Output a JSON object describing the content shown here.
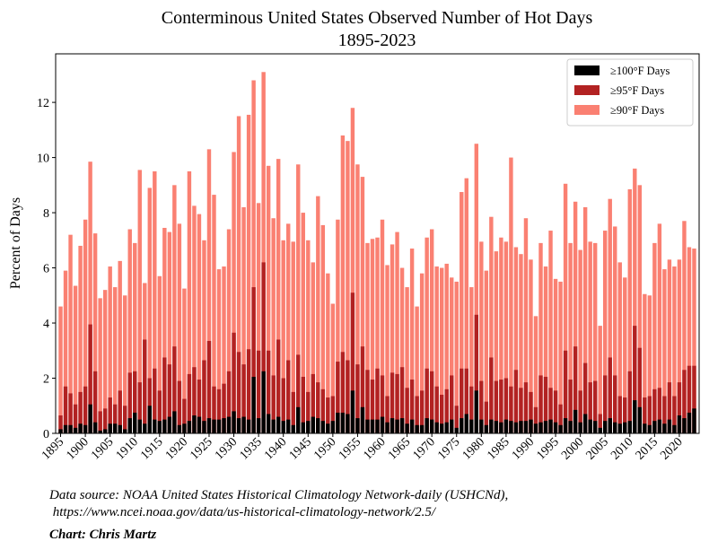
{
  "chart_data": {
    "type": "bar",
    "title": "Conterminous United States Observed Number of Hot Days",
    "subtitle": "1895-2023",
    "y_label": "Percent of Days",
    "source": [
      "Data source: NOAA United States Historical Climatology Network-daily (USHCNd),",
      " https://www.ncei.noaa.gov/data/us-historical-climatology-network/2.5/"
    ],
    "credit": "Chart: Chris Martz",
    "x": [
      1895,
      1896,
      1897,
      1898,
      1899,
      1900,
      1901,
      1902,
      1903,
      1904,
      1905,
      1906,
      1907,
      1908,
      1909,
      1910,
      1911,
      1912,
      1913,
      1914,
      1915,
      1916,
      1917,
      1918,
      1919,
      1920,
      1921,
      1922,
      1923,
      1924,
      1925,
      1926,
      1927,
      1928,
      1929,
      1930,
      1931,
      1932,
      1933,
      1934,
      1935,
      1936,
      1937,
      1938,
      1939,
      1940,
      1941,
      1942,
      1943,
      1944,
      1945,
      1946,
      1947,
      1948,
      1949,
      1950,
      1951,
      1952,
      1953,
      1954,
      1955,
      1956,
      1957,
      1958,
      1959,
      1960,
      1961,
      1962,
      1963,
      1964,
      1965,
      1966,
      1967,
      1968,
      1969,
      1970,
      1971,
      1972,
      1973,
      1974,
      1975,
      1976,
      1977,
      1978,
      1979,
      1980,
      1981,
      1982,
      1983,
      1984,
      1985,
      1986,
      1987,
      1988,
      1989,
      1990,
      1991,
      1992,
      1993,
      1994,
      1995,
      1996,
      1997,
      1998,
      1999,
      2000,
      2001,
      2002,
      2003,
      2004,
      2005,
      2006,
      2007,
      2008,
      2009,
      2010,
      2011,
      2012,
      2013,
      2014,
      2015,
      2016,
      2017,
      2018,
      2019,
      2020,
      2021,
      2022,
      2023
    ],
    "series": [
      {
        "name": "≥100°F Days",
        "color": "#000000",
        "values": [
          0.15,
          0.3,
          0.3,
          0.2,
          0.35,
          0.3,
          1.05,
          0.4,
          0.1,
          0.15,
          0.35,
          0.35,
          0.3,
          0.15,
          0.55,
          0.75,
          0.5,
          0.35,
          1.0,
          0.5,
          0.45,
          0.5,
          0.6,
          0.8,
          0.3,
          0.35,
          0.45,
          0.65,
          0.6,
          0.45,
          0.55,
          0.5,
          0.5,
          0.55,
          0.6,
          0.8,
          0.55,
          0.6,
          0.5,
          2.05,
          0.55,
          2.25,
          0.7,
          0.5,
          0.6,
          0.45,
          0.5,
          0.3,
          0.95,
          0.4,
          0.45,
          0.6,
          0.55,
          0.45,
          0.35,
          0.45,
          0.75,
          0.75,
          0.7,
          1.55,
          0.55,
          0.95,
          0.5,
          0.5,
          0.5,
          0.6,
          0.4,
          0.55,
          0.5,
          0.55,
          0.35,
          0.5,
          0.3,
          0.3,
          0.55,
          0.5,
          0.4,
          0.35,
          0.4,
          0.5,
          0.2,
          0.55,
          0.7,
          0.5,
          1.55,
          0.5,
          0.3,
          0.5,
          0.45,
          0.4,
          0.5,
          0.45,
          0.4,
          0.45,
          0.45,
          0.5,
          0.35,
          0.4,
          0.45,
          0.5,
          0.4,
          0.3,
          0.55,
          0.45,
          0.85,
          0.4,
          0.7,
          0.5,
          0.45,
          0.2,
          0.45,
          0.55,
          0.4,
          0.35,
          0.4,
          0.45,
          1.2,
          0.95,
          0.35,
          0.3,
          0.45,
          0.5,
          0.35,
          0.5,
          0.3,
          0.65,
          0.55,
          0.75,
          0.9
        ]
      },
      {
        "name": "≥95°F Days",
        "color": "#b22222",
        "values": [
          0.65,
          1.7,
          1.45,
          1.05,
          1.5,
          1.7,
          3.95,
          2.25,
          0.8,
          0.9,
          1.3,
          1.05,
          1.55,
          1.0,
          2.2,
          2.25,
          1.85,
          3.4,
          2.0,
          2.35,
          1.55,
          2.75,
          2.5,
          3.15,
          1.9,
          1.25,
          2.15,
          2.4,
          1.95,
          2.65,
          3.35,
          1.7,
          1.6,
          1.8,
          2.25,
          3.65,
          2.95,
          2.5,
          3.05,
          5.3,
          3.0,
          6.2,
          3.0,
          2.1,
          3.4,
          2.0,
          2.65,
          1.5,
          2.85,
          2.05,
          1.5,
          2.15,
          1.85,
          1.6,
          1.3,
          1.35,
          2.6,
          2.95,
          2.65,
          5.1,
          2.5,
          3.15,
          2.3,
          1.95,
          2.35,
          2.1,
          1.35,
          2.2,
          2.15,
          2.4,
          1.65,
          1.95,
          1.35,
          1.55,
          2.35,
          2.25,
          1.7,
          1.4,
          1.6,
          2.1,
          1.0,
          2.35,
          2.35,
          1.7,
          4.3,
          1.9,
          1.15,
          2.75,
          1.9,
          1.95,
          2.0,
          1.7,
          2.3,
          1.65,
          1.85,
          1.5,
          0.95,
          2.1,
          2.05,
          1.65,
          1.55,
          1.05,
          3.0,
          1.95,
          3.15,
          1.55,
          2.55,
          1.85,
          1.9,
          0.7,
          2.1,
          2.75,
          2.1,
          1.35,
          1.3,
          2.25,
          3.9,
          3.1,
          1.3,
          1.35,
          1.6,
          1.65,
          1.35,
          1.85,
          1.35,
          1.85,
          2.3,
          2.45,
          2.45
        ]
      },
      {
        "name": "≥90°F Days",
        "color": "#fa8072",
        "values": [
          4.6,
          5.9,
          7.2,
          5.35,
          6.8,
          7.75,
          9.85,
          7.25,
          4.9,
          5.2,
          6.05,
          5.3,
          6.25,
          5.0,
          7.4,
          6.9,
          9.55,
          5.45,
          8.9,
          9.5,
          5.7,
          7.45,
          7.3,
          9.0,
          7.6,
          5.25,
          9.5,
          8.25,
          7.95,
          7.0,
          10.3,
          8.65,
          5.95,
          6.05,
          7.4,
          10.2,
          11.5,
          8.2,
          11.55,
          12.8,
          8.35,
          13.1,
          9.7,
          7.8,
          9.95,
          7.0,
          7.6,
          6.95,
          9.75,
          8.0,
          7.0,
          6.2,
          8.6,
          7.55,
          5.8,
          4.7,
          7.75,
          10.8,
          10.6,
          11.8,
          9.75,
          9.3,
          6.9,
          7.05,
          7.1,
          7.75,
          6.1,
          6.85,
          7.3,
          6.0,
          5.3,
          6.7,
          4.6,
          5.8,
          7.1,
          7.4,
          6.05,
          6.0,
          6.15,
          5.65,
          5.5,
          8.75,
          9.25,
          5.3,
          10.5,
          6.95,
          5.9,
          7.85,
          6.6,
          7.1,
          6.95,
          10.0,
          6.75,
          6.5,
          7.8,
          6.3,
          4.25,
          6.9,
          6.05,
          7.35,
          5.6,
          5.5,
          9.05,
          6.9,
          8.4,
          6.65,
          8.2,
          6.95,
          6.9,
          3.9,
          7.35,
          8.5,
          7.5,
          6.2,
          5.65,
          8.85,
          9.6,
          9.0,
          5.05,
          5.0,
          6.9,
          7.6,
          5.95,
          6.3,
          6.05,
          6.3,
          7.7,
          6.75,
          6.7
        ]
      }
    ],
    "xlim": [
      1894,
      2024
    ],
    "xticks": [
      1895,
      1900,
      1905,
      1910,
      1915,
      1920,
      1925,
      1930,
      1935,
      1940,
      1945,
      1950,
      1955,
      1960,
      1965,
      1970,
      1975,
      1980,
      1985,
      1990,
      1995,
      2000,
      2005,
      2010,
      2015,
      2020
    ],
    "ylim": [
      0,
      13.76
    ],
    "yticks": [
      0,
      2,
      4,
      6,
      8,
      10,
      12
    ],
    "legend": "upper right",
    "grid": false
  }
}
